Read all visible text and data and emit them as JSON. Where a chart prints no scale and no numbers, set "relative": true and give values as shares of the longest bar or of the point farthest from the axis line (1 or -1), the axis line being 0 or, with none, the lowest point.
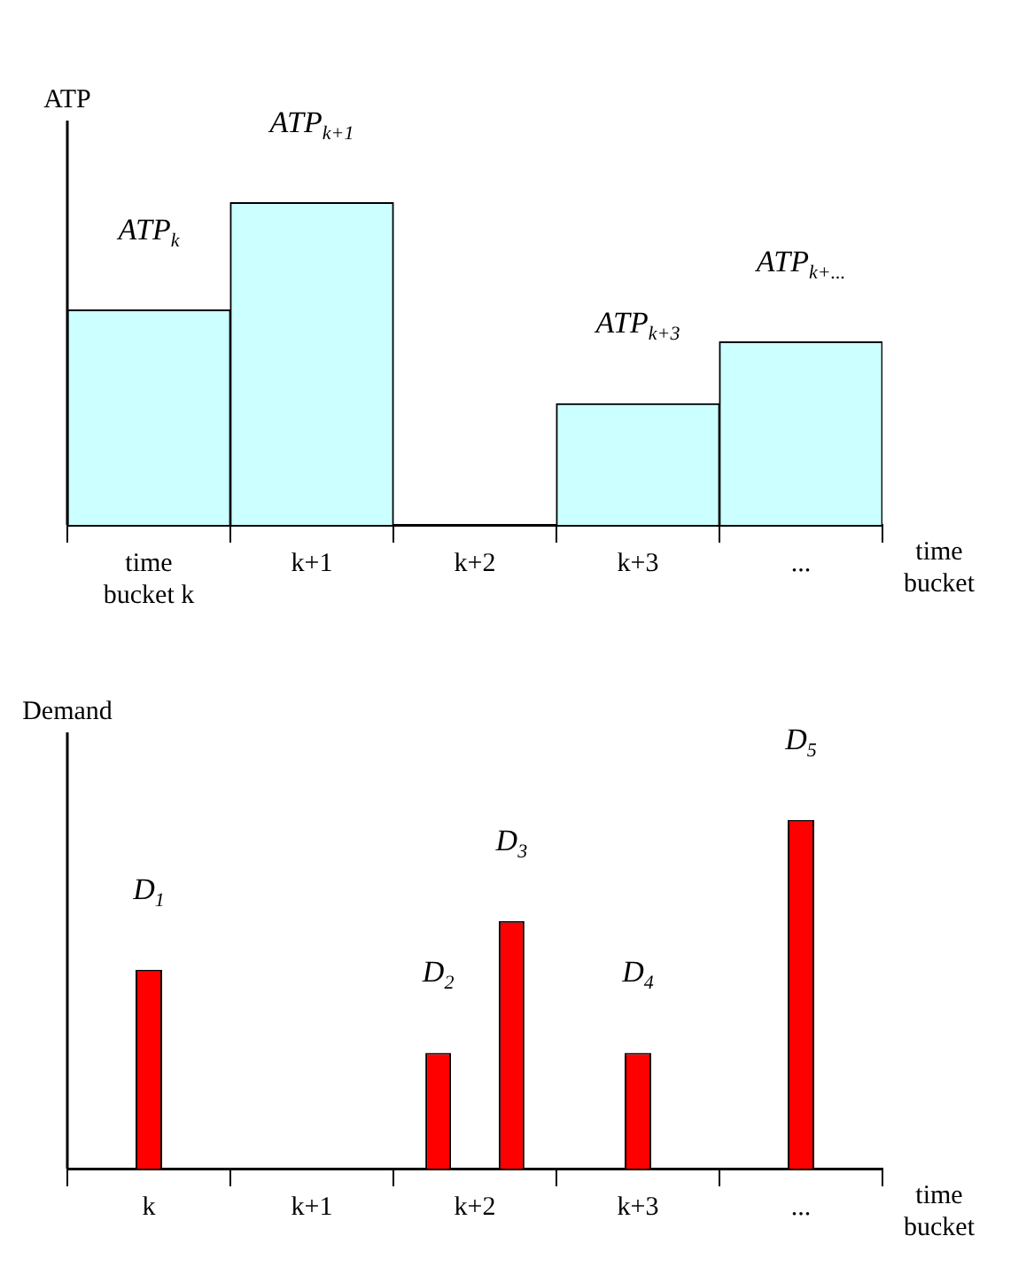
{
  "chart_data": [
    {
      "type": "bar",
      "relative": true,
      "categories": [
        "time bucket k",
        "k+1",
        "k+2",
        "k+3",
        "..."
      ],
      "series": [
        {
          "color": "#ccffff",
          "values": [
            0.667,
            1,
            null,
            0.376,
            0.568
          ]
        }
      ],
      "ylabel": "ATP",
      "xlabel": "time bucket",
      "grid": false,
      "legend": false,
      "annotations": [
        {
          "text": "ATP$_{k}$",
          "x": "time bucket k",
          "y": 0.667
        },
        {
          "text": "ATP$_{k+1}$",
          "x": "k+1",
          "y": 1
        },
        {
          "text": "ATP$_{k+3}$",
          "x": "k+3",
          "y": 0.376
        },
        {
          "text": "ATP$_{k+...}$",
          "x": "...",
          "y": 0.568
        }
      ]
    },
    {
      "type": "bar",
      "relative": true,
      "categories": [
        "k",
        "k+1",
        "k+2",
        "k+3",
        "..."
      ],
      "series": [
        {
          "name": "D$_{1}$",
          "color": "#ff0000",
          "values": [
            0.57,
            null,
            null,
            null,
            null
          ]
        },
        {
          "name": "D$_{2}$",
          "color": "#ff0000",
          "values": [
            null,
            null,
            0.332,
            null,
            null
          ]
        },
        {
          "name": "D$_{3}$",
          "color": "#ff0000",
          "values": [
            null,
            null,
            0.71,
            null,
            null
          ]
        },
        {
          "name": "D$_{4}$",
          "color": "#ff0000",
          "values": [
            null,
            null,
            null,
            0.332,
            null
          ]
        },
        {
          "name": "D$_{5}$",
          "color": "#ff0000",
          "values": [
            null,
            null,
            null,
            null,
            1
          ]
        }
      ],
      "ylabel": "Demand",
      "xlabel": "time bucket",
      "grid": false,
      "legend": false
    }
  ]
}
